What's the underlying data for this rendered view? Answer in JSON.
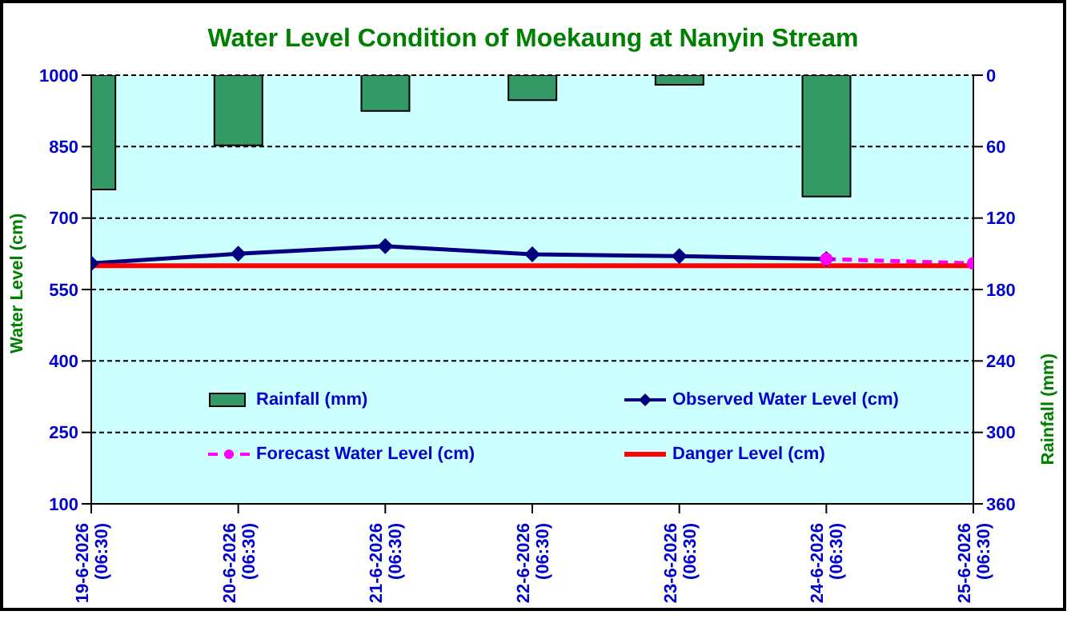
{
  "chart_data": {
    "type": "line",
    "title": "Water Level Condition of Moekaung at Nanyin Stream",
    "ylabel": "Water Level (cm)",
    "y2label": "Rainfall (mm)",
    "categories": [
      "19-6-2026 (06:30)",
      "20-6-2026 (06:30)",
      "21-6-2026 (06:30)",
      "22-6-2026 (06:30)",
      "23-6-2026 (06:30)",
      "24-6-2026 (06:30)",
      "25-6-2026 (06:30)"
    ],
    "series": [
      {
        "name": "Rainfall (mm)",
        "type": "bar",
        "axis": "y2",
        "color": "#339966",
        "values": [
          96,
          59,
          30,
          21,
          8,
          102,
          0
        ]
      },
      {
        "name": "Observed Water Level (cm)",
        "color": "#000080",
        "marker": "diamond",
        "line_style": "solid",
        "values": [
          605,
          625,
          641,
          624,
          620,
          614,
          null
        ]
      },
      {
        "name": "Forecast Water Level (cm)",
        "color": "#ff00ff",
        "marker": "circle",
        "line_style": "dashed",
        "values": [
          null,
          null,
          null,
          null,
          null,
          614,
          605
        ]
      },
      {
        "name": "Danger Level (cm)",
        "color": "#ff0000",
        "marker": "none",
        "line_style": "solid",
        "values": [
          600,
          600,
          600,
          600,
          600,
          600,
          600
        ]
      }
    ],
    "ylim": [
      100,
      1000
    ],
    "yticks": [
      100,
      250,
      400,
      550,
      700,
      850,
      1000
    ],
    "y2lim": [
      360,
      0
    ],
    "y2ticks": [
      0,
      60,
      120,
      180,
      240,
      300,
      360
    ],
    "grid": "y",
    "legend": "bottom"
  }
}
